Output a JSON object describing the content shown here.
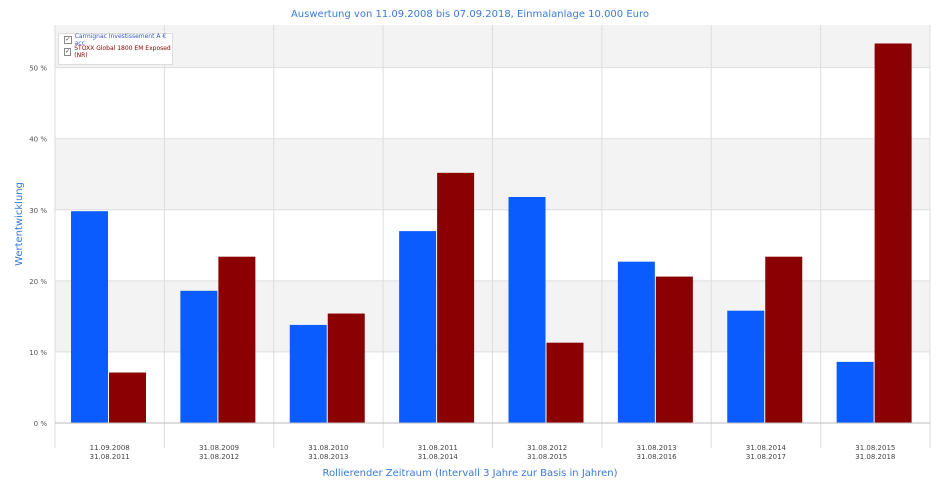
{
  "chart_data": {
    "type": "bar",
    "title": "Auswertung von 11.09.2008 bis 07.09.2018, Einmalanlage 10.000 Euro",
    "xlabel": "Rollierender Zeitraum (Intervall 3 Jahre zur Basis in Jahren)",
    "ylabel": "Wertentwicklung",
    "ylim": [
      0,
      56
    ],
    "yticks": [
      0,
      10,
      20,
      30,
      40,
      50
    ],
    "ytick_labels": [
      "0 %",
      "10 %",
      "20 %",
      "30 %",
      "40 %",
      "50 %"
    ],
    "grid": true,
    "legend_position": "top-left",
    "categories": [
      [
        "11.09.2008",
        "31.08.2011"
      ],
      [
        "31.08.2009",
        "31.08.2012"
      ],
      [
        "31.08.2010",
        "31.08.2013"
      ],
      [
        "31.08.2011",
        "31.08.2014"
      ],
      [
        "31.08.2012",
        "31.08.2015"
      ],
      [
        "31.08.2013",
        "31.08.2016"
      ],
      [
        "31.08.2014",
        "31.08.2017"
      ],
      [
        "31.08.2015",
        "31.08.2018"
      ]
    ],
    "series": [
      {
        "name": "Carmignac Investissement A € acc",
        "color": "#0a5cff",
        "values": [
          29.8,
          18.6,
          13.8,
          27.0,
          31.8,
          22.7,
          15.8,
          8.6
        ]
      },
      {
        "name": "STOXX Global 1800 EM Exposed (NR)",
        "color": "#8b0000",
        "values": [
          7.1,
          23.4,
          15.4,
          35.2,
          11.3,
          20.6,
          23.4,
          53.4
        ]
      }
    ]
  }
}
